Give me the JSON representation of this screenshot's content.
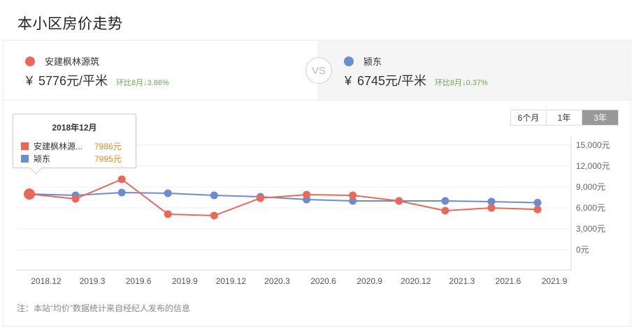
{
  "page": {
    "title": "本小区房价走势"
  },
  "compare": {
    "left": {
      "name": "安建枫林源筑",
      "color": "#e8695a",
      "currency": "¥",
      "price": "5776元/平米",
      "change": "环比8月↓3.86%"
    },
    "vs_label": "VS",
    "right": {
      "name": "颍东",
      "color": "#6c8ccf",
      "currency": "¥",
      "price": "6745元/平米",
      "change": "环比8月↓0.37%"
    }
  },
  "range_tabs": [
    {
      "label": "6个月",
      "active": false
    },
    {
      "label": "1年",
      "active": false
    },
    {
      "label": "3年",
      "active": true
    }
  ],
  "tooltip": {
    "title": "2018年12月",
    "rows": [
      {
        "name": "安建枫林源...",
        "value": "7986元",
        "color": "#e8695a"
      },
      {
        "name": "颍东",
        "value": "7995元",
        "color": "#6c8ccf"
      }
    ]
  },
  "note": "注：本站“均价”数据统计来自经纪人发布的信息",
  "chart_data": {
    "type": "line",
    "title": "本小区房价走势",
    "xlabel": "",
    "ylabel": "",
    "categories": [
      "2018.12",
      "2019.3",
      "2019.6",
      "2019.9",
      "2019.12",
      "2020.3",
      "2020.6",
      "2020.9",
      "2020.12",
      "2021.3",
      "2021.6",
      "2021.9"
    ],
    "series": [
      {
        "name": "安建枫林源筑",
        "color": "#e8695a",
        "values": [
          7986,
          7300,
          10100,
          5100,
          4900,
          7400,
          7900,
          7800,
          7000,
          5600,
          6000,
          5776
        ]
      },
      {
        "name": "颍东",
        "color": "#6c8ccf",
        "values": [
          7995,
          7800,
          8200,
          8100,
          7800,
          7600,
          7200,
          7000,
          7000,
          7000,
          6900,
          6745
        ]
      }
    ],
    "y_ticks": [
      "15,000元",
      "12,000元",
      "9,000元",
      "6,000元",
      "3,000元",
      "0元"
    ],
    "ylim": [
      0,
      15000
    ],
    "grid": true,
    "legend_position": "top (comparison header)",
    "highlighted_point": "2018.12"
  }
}
